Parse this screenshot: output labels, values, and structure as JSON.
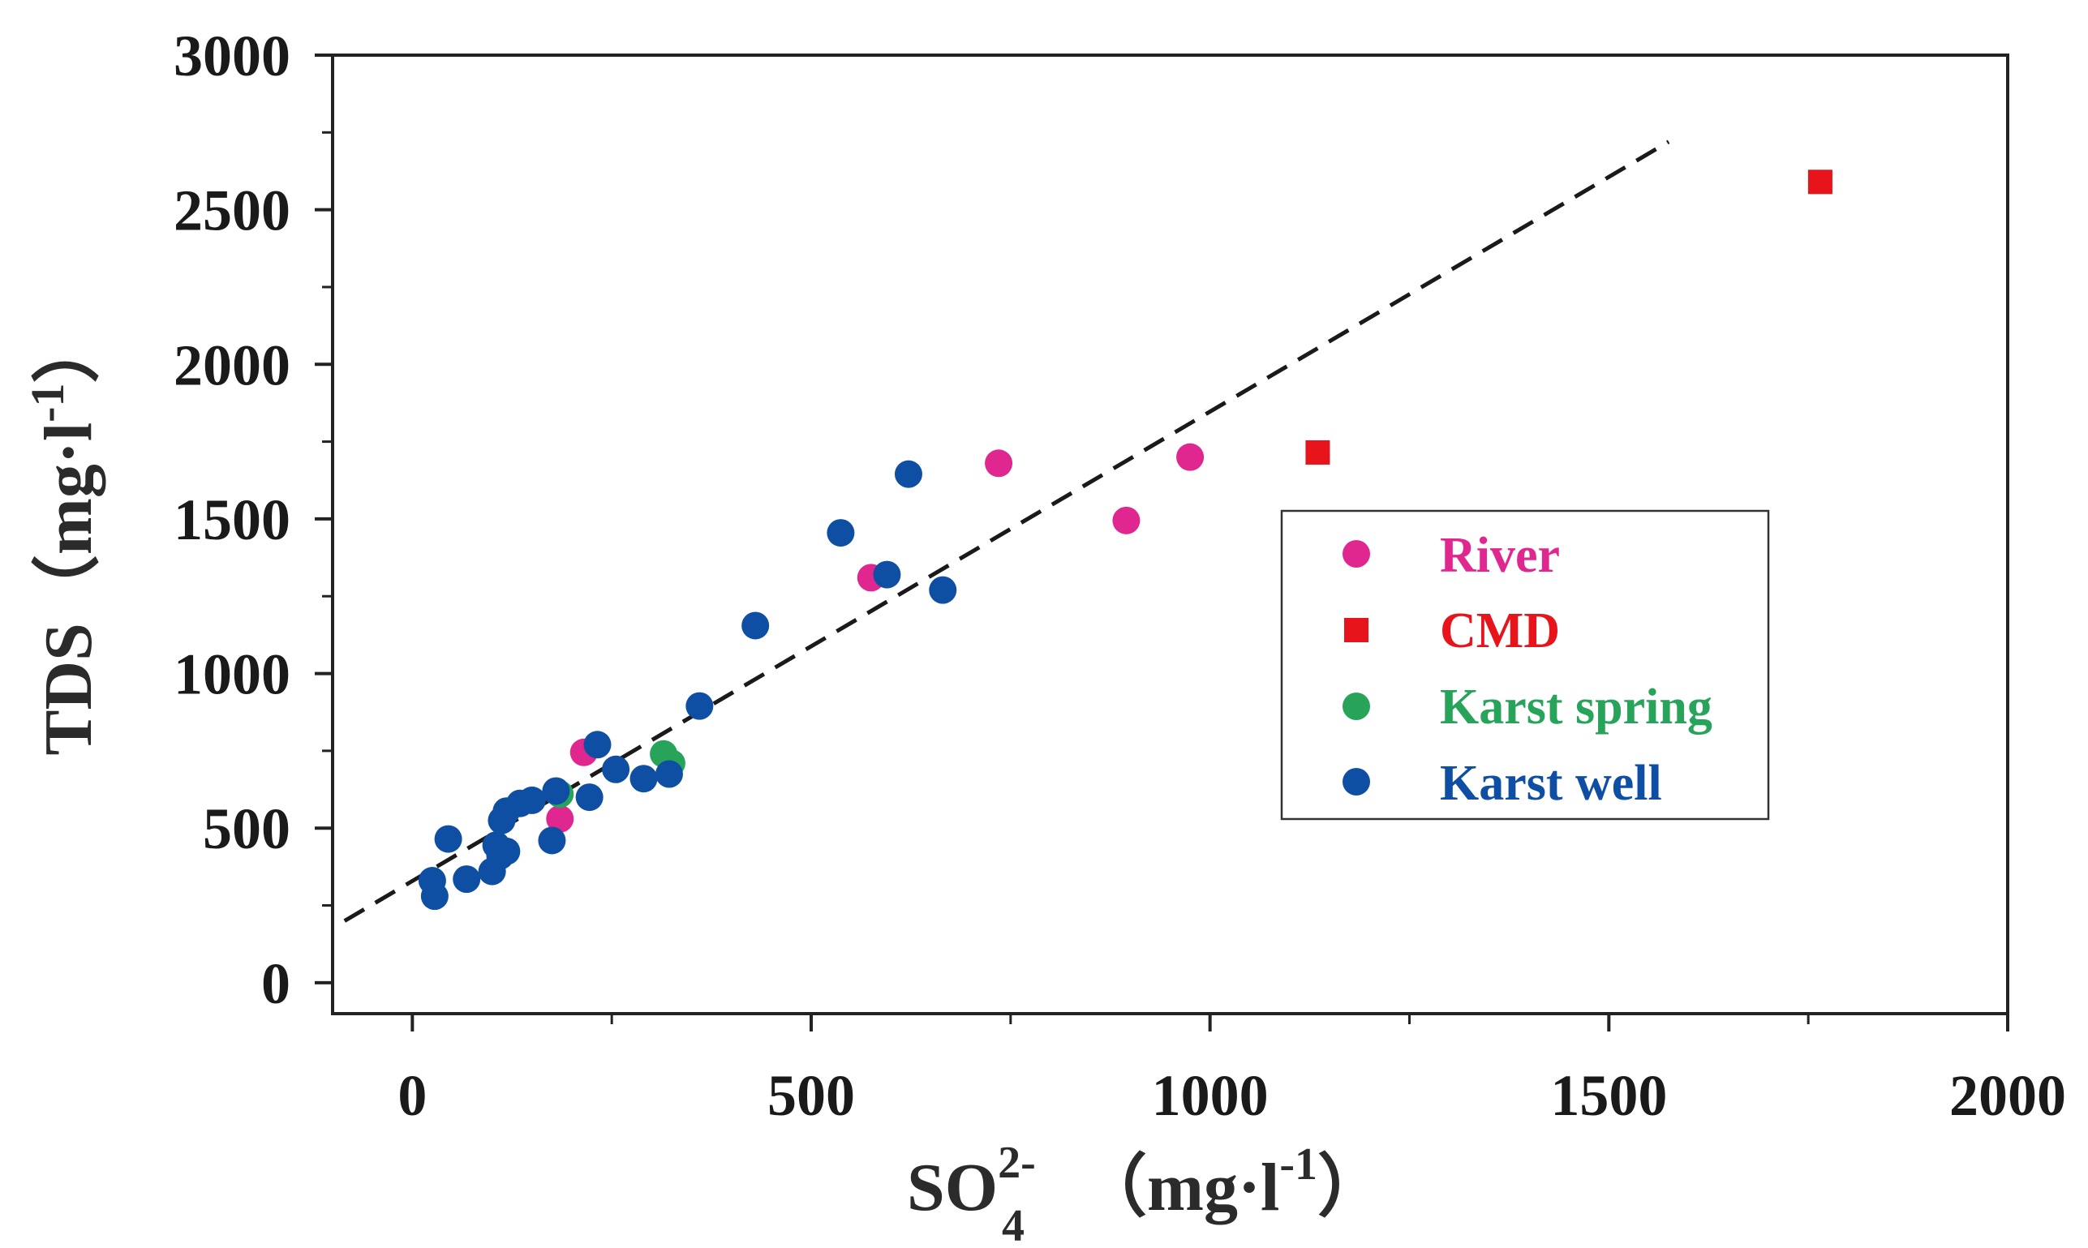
{
  "chart_data": {
    "type": "scatter",
    "xlabel": {
      "main": "SO",
      "sub": "4",
      "sup": "2-",
      "unit_prefix": "（mg·l",
      "unit_sup": "-1",
      "unit_suffix": "）"
    },
    "ylabel": {
      "main": "TDS（mg·l",
      "sup": "-1",
      "suffix": "）"
    },
    "xlim": [
      -100,
      2000
    ],
    "ylim": [
      -100,
      3000
    ],
    "x_ticks": [
      0,
      500,
      1000,
      1500,
      2000
    ],
    "x_tick_labels": [
      "0",
      "500",
      "1000",
      "1500",
      "2000"
    ],
    "y_ticks": [
      0,
      500,
      1000,
      1500,
      2000,
      2500,
      3000
    ],
    "y_tick_labels": [
      "0",
      "500",
      "1000",
      "1500",
      "2000",
      "2500",
      "3000"
    ],
    "fit_line": {
      "style": "dashed",
      "color": "#1a1a1a",
      "x": [
        -85,
        1575
      ],
      "y": [
        200,
        2720
      ]
    },
    "legend_position": "right",
    "series": [
      {
        "name": "River",
        "marker": "circle",
        "color": "#e0278f",
        "points": [
          [
            215,
            745
          ],
          [
            185,
            530
          ],
          [
            575,
            1310
          ],
          [
            735,
            1680
          ],
          [
            895,
            1495
          ],
          [
            975,
            1700
          ]
        ]
      },
      {
        "name": "CMD",
        "marker": "square",
        "color": "#e8141c",
        "points": [
          [
            1135,
            1715
          ],
          [
            1765,
            2590
          ]
        ]
      },
      {
        "name": "Karst spring",
        "marker": "circle",
        "color": "#27a35a",
        "points": [
          [
            185,
            610
          ],
          [
            315,
            740
          ],
          [
            325,
            710
          ]
        ]
      },
      {
        "name": "Karst well",
        "marker": "circle",
        "color": "#0f4fa3",
        "points": [
          [
            25,
            330
          ],
          [
            28,
            280
          ],
          [
            45,
            465
          ],
          [
            68,
            335
          ],
          [
            100,
            360
          ],
          [
            110,
            410
          ],
          [
            105,
            445
          ],
          [
            118,
            425
          ],
          [
            112,
            525
          ],
          [
            118,
            555
          ],
          [
            135,
            580
          ],
          [
            150,
            590
          ],
          [
            175,
            460
          ],
          [
            180,
            620
          ],
          [
            222,
            600
          ],
          [
            232,
            770
          ],
          [
            255,
            690
          ],
          [
            290,
            660
          ],
          [
            322,
            675
          ],
          [
            360,
            895
          ],
          [
            430,
            1155
          ],
          [
            537,
            1455
          ],
          [
            595,
            1320
          ],
          [
            622,
            1645
          ],
          [
            665,
            1270
          ]
        ]
      }
    ]
  }
}
